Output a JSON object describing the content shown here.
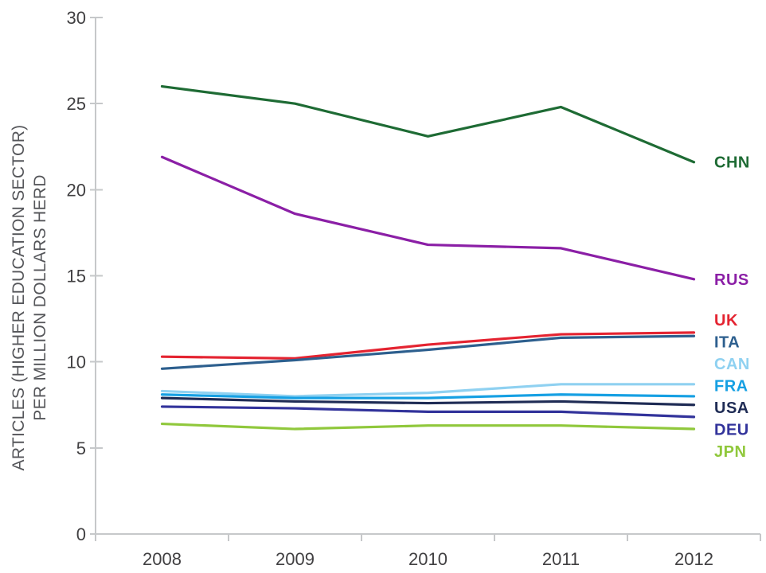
{
  "chart_data": {
    "type": "line",
    "title": "",
    "ylabel_line1": "ARTICLES (HIGHER EDUCATION SECTOR)",
    "ylabel_line2": "PER MILLION DOLLARS HERD",
    "xlabel": "",
    "categories": [
      "2008",
      "2009",
      "2010",
      "2011",
      "2012"
    ],
    "ylim": [
      0,
      30
    ],
    "yticks": [
      0,
      5,
      10,
      15,
      20,
      25,
      30
    ],
    "grid": "off",
    "legend_position": "labels-at-line-ends-right",
    "series": [
      {
        "name": "CHN",
        "color": "#1E6B34",
        "values": [
          26.0,
          25.0,
          23.1,
          24.8,
          21.6
        ]
      },
      {
        "name": "RUS",
        "color": "#8B1FA6",
        "values": [
          21.9,
          18.6,
          16.8,
          16.6,
          14.8
        ]
      },
      {
        "name": "UK",
        "color": "#E42431",
        "values": [
          10.3,
          10.2,
          11.0,
          11.6,
          11.7
        ]
      },
      {
        "name": "ITA",
        "color": "#2D5F8E",
        "values": [
          9.6,
          10.1,
          10.7,
          11.4,
          11.5
        ]
      },
      {
        "name": "CAN",
        "color": "#8FD1F1",
        "values": [
          8.3,
          8.0,
          8.2,
          8.7,
          8.7
        ]
      },
      {
        "name": "FRA",
        "color": "#16A0E3",
        "values": [
          8.1,
          7.9,
          7.9,
          8.1,
          8.0
        ]
      },
      {
        "name": "USA",
        "color": "#1F2C55",
        "values": [
          7.9,
          7.7,
          7.6,
          7.7,
          7.5
        ]
      },
      {
        "name": "DEU",
        "color": "#32339B",
        "values": [
          7.4,
          7.3,
          7.1,
          7.1,
          6.8
        ]
      },
      {
        "name": "JPN",
        "color": "#90C83C",
        "values": [
          6.4,
          6.1,
          6.3,
          6.3,
          6.1
        ]
      }
    ],
    "axis_color": "#C6C8CA",
    "tick_label_color": "#414042",
    "axis_title_color": "#55565A"
  }
}
